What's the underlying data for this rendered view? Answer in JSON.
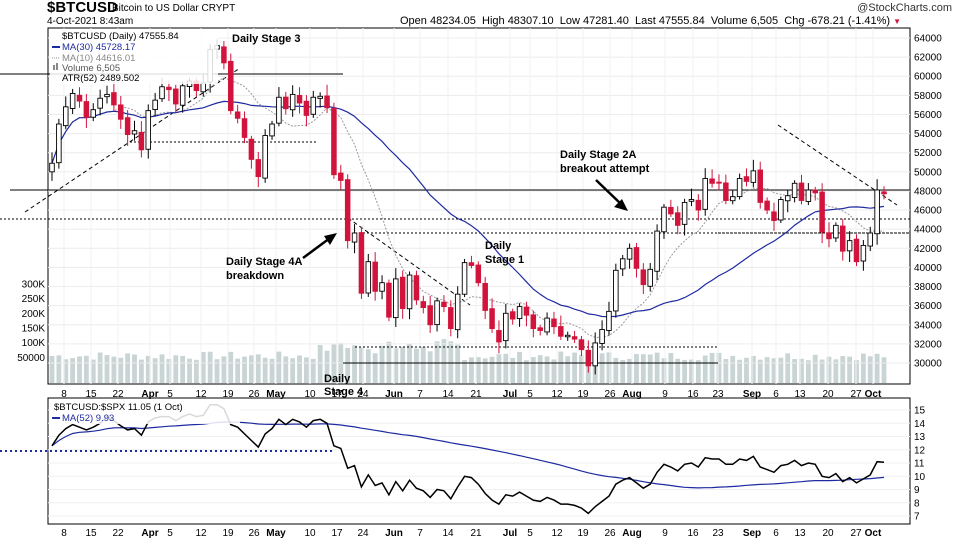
{
  "header": {
    "symbol": "$BTCUSD",
    "subtitle": "Bitcoin to US Dollar  CRYPT",
    "datetime": "4-Oct-2021 8:43am",
    "open_label": "Open",
    "open": "48234.05",
    "high_label": "High",
    "high": "48307.10",
    "low_label": "Low",
    "low": "47281.40",
    "last_label": "Last",
    "last": "47555.84",
    "volume_label": "Volume",
    "volume": "6,505",
    "chg_label": "Chg",
    "chg": "-678.21 (-1.41%)",
    "watermark": "@StockCharts.com"
  },
  "legend": {
    "main": "$BTCUSD (Daily) 47555.84",
    "ma30": "MA(30) 45728.17",
    "ma10": "MA(10) 44616.01",
    "volume": "Volume 6,505",
    "atr": "ATR(52) 2489.502",
    "ratio": "$BTCUSD:$SPX 11.05 (1 Oct)",
    "ratio_ma": "MA(52) 9.93"
  },
  "annotations": {
    "stage3": "Daily Stage 3",
    "stage4a_1": "Daily Stage 4A",
    "stage4a_2": "breakdown",
    "stage1_1": "Daily",
    "stage1_2": "Stage 1",
    "stage2a_1": "Daily Stage 2A",
    "stage2a_2": "breakout attempt",
    "stage4_1": "Daily",
    "stage4_2": "Stage 4"
  },
  "colors": {
    "up": "#000000",
    "down": "#d2143c",
    "ma30": "#1e2aa0",
    "ma10": "#9a9a9a",
    "volume": "#c9d4d4",
    "ratio_line": "#000000",
    "ratio_ma": "#1e2aa0",
    "dotted_level": "#1e2aa0"
  },
  "chart_data": [
    {
      "type": "candlestick",
      "title": "$BTCUSD (Daily)",
      "x_ticks": [
        "8",
        "15",
        "22",
        "Apr",
        "5",
        "12",
        "19",
        "26",
        "May",
        "10",
        "17",
        "24",
        "Jun",
        "7",
        "14",
        "21",
        "Jul",
        "5",
        "12",
        "19",
        "26",
        "Aug",
        "9",
        "16",
        "23",
        "Sep",
        "6",
        "13",
        "20",
        "27",
        "Oct"
      ],
      "y_ticks": [
        "30000",
        "32000",
        "34000",
        "36000",
        "38000",
        "40000",
        "42000",
        "44000",
        "46000",
        "48000",
        "50000",
        "52000",
        "54000",
        "56000",
        "58000",
        "60000",
        "62000",
        "64000"
      ],
      "ylim": [
        29000,
        65000
      ],
      "volume_ticks": [
        "50000",
        "100K",
        "150K",
        "200K",
        "250K",
        "300K"
      ],
      "closes": [
        50900,
        55000,
        56800,
        58200,
        57400,
        55700,
        56500,
        57700,
        58100,
        57000,
        55500,
        53900,
        54300,
        52300,
        56400,
        57500,
        58900,
        58600,
        57100,
        59000,
        59500,
        58500,
        59300,
        62800,
        63200,
        61400,
        56400,
        55600,
        53600,
        51300,
        49500,
        53800,
        55000,
        57800,
        56600,
        58100,
        57200,
        55900,
        57800,
        57900,
        56700,
        49700,
        49100,
        42800,
        43600,
        37300,
        40600,
        37500,
        38400,
        34800,
        38800,
        35700,
        39200,
        36600,
        35800,
        34000,
        36500,
        35900,
        33600,
        37200,
        40500,
        40200,
        38400,
        35500,
        33600,
        32200,
        35200,
        34600,
        35900,
        35000,
        33600,
        33400,
        34700,
        33800,
        32800,
        32900,
        32500,
        31400,
        29700,
        32100,
        33500,
        35400,
        39700,
        40900,
        42000,
        39900,
        38200,
        39800,
        43800,
        46300,
        45600,
        44400,
        46800,
        47100,
        46000,
        49300,
        48800,
        48900,
        47000,
        47400,
        49300,
        49000,
        50100,
        46800,
        46000,
        44900,
        47100,
        47500,
        48800,
        47000,
        48100,
        47800,
        43700,
        43000,
        44400,
        41700,
        42800,
        40600,
        42300,
        43600,
        48100,
        47700
      ]
    },
    {
      "type": "line",
      "title": "$BTCUSD:$SPX",
      "y_ticks": [
        "7",
        "8",
        "9",
        "10",
        "11",
        "12",
        "13",
        "14",
        "15"
      ],
      "ylim": [
        6.6,
        15.6
      ],
      "series": [
        {
          "name": "$BTCUSD:$SPX",
          "values": [
            12.3,
            13.1,
            13.6,
            13.9,
            13.7,
            13.5,
            13.7,
            14.0,
            14.5,
            14.2,
            13.8,
            13.5,
            13.6,
            13.1,
            14.1,
            14.4,
            14.5,
            14.5,
            14.2,
            14.5,
            14.7,
            14.5,
            14.6,
            15.5,
            15.5,
            15.1,
            13.9,
            13.7,
            13.2,
            12.7,
            12.2,
            13.2,
            13.6,
            14.3,
            13.9,
            14.3,
            14.1,
            13.7,
            14.2,
            14.3,
            14.0,
            12.3,
            12.1,
            10.6,
            10.8,
            9.2,
            10.1,
            9.3,
            9.5,
            8.6,
            9.6,
            8.9,
            9.7,
            9.1,
            8.9,
            8.4,
            9.0,
            8.9,
            8.3,
            9.2,
            10.0,
            9.9,
            9.4,
            8.7,
            8.2,
            7.9,
            8.6,
            8.5,
            8.8,
            8.5,
            8.2,
            8.1,
            8.4,
            8.2,
            7.9,
            7.9,
            7.8,
            7.6,
            7.2,
            7.7,
            8.1,
            8.5,
            9.4,
            9.7,
            9.9,
            9.5,
            9.1,
            9.4,
            10.3,
            10.9,
            10.7,
            10.4,
            10.9,
            11.0,
            10.7,
            11.4,
            11.3,
            11.3,
            10.9,
            10.9,
            11.3,
            11.2,
            11.5,
            10.7,
            10.5,
            10.3,
            10.8,
            10.9,
            11.2,
            10.8,
            11.0,
            10.9,
            10.0,
            9.9,
            10.2,
            9.6,
            9.9,
            9.5,
            9.8,
            10.1,
            11.1,
            11.05
          ]
        },
        {
          "name": "MA(52)",
          "values": []
        }
      ]
    }
  ]
}
